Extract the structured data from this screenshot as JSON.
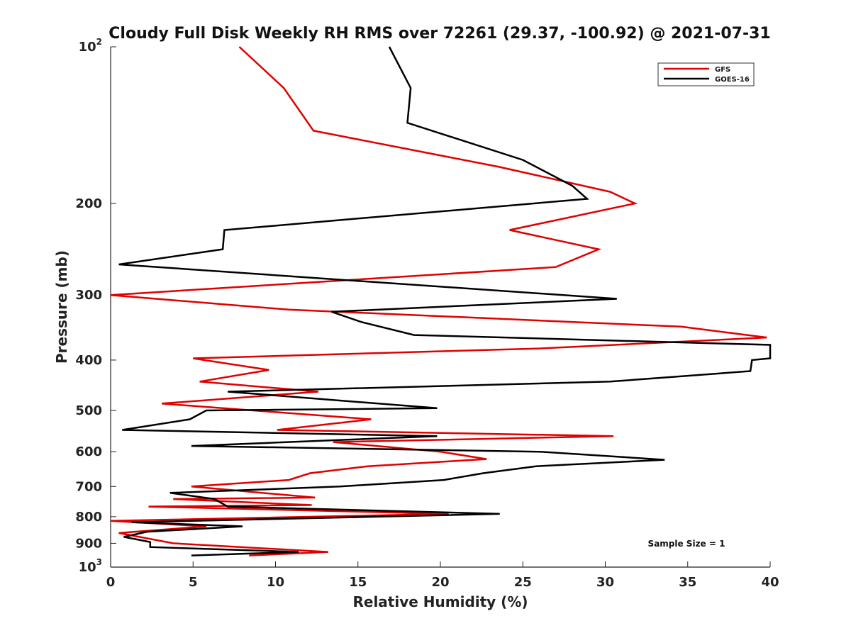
{
  "chart_data": {
    "type": "line",
    "title": "Cloudy Full Disk Weekly RH RMS over 72261 (29.37, -100.92) @ 2021-07-31",
    "xlabel": "Relative Humidity (%)",
    "ylabel": "Pressure (mb)",
    "xlim": [
      0,
      40
    ],
    "ylim": [
      100,
      1000
    ],
    "y_scale": "log",
    "y_reversed": true,
    "grid": false,
    "legend_position": "top-right",
    "annotation": "Sample Size = 1",
    "x_ticks": [
      "0",
      "5",
      "10",
      "15",
      "20",
      "25",
      "30",
      "35",
      "40"
    ],
    "y_ticks": [
      {
        "value": 100,
        "base": "10",
        "sup": "2"
      },
      {
        "value": 200,
        "label": "200"
      },
      {
        "value": 300,
        "label": "300"
      },
      {
        "value": 400,
        "label": "400"
      },
      {
        "value": 500,
        "label": "500"
      },
      {
        "value": 600,
        "label": "600"
      },
      {
        "value": 700,
        "label": "700"
      },
      {
        "value": 800,
        "label": "800"
      },
      {
        "value": 900,
        "label": "900"
      },
      {
        "value": 1000,
        "base": "10",
        "sup": "3"
      }
    ],
    "series": [
      {
        "name": "GFS",
        "color": "#e00000",
        "points": [
          [
            7.8,
            100
          ],
          [
            10.5,
            120
          ],
          [
            12.3,
            145
          ],
          [
            23.5,
            170
          ],
          [
            30.3,
            190
          ],
          [
            31.8,
            200
          ],
          [
            24.2,
            225
          ],
          [
            29.6,
            245
          ],
          [
            27.0,
            265
          ],
          [
            0.0,
            300
          ],
          [
            10.8,
            320
          ],
          [
            34.6,
            345
          ],
          [
            39.8,
            362
          ],
          [
            26.0,
            380
          ],
          [
            5.0,
            397
          ],
          [
            9.6,
            418
          ],
          [
            5.4,
            440
          ],
          [
            12.6,
            460
          ],
          [
            3.1,
            485
          ],
          [
            15.8,
            520
          ],
          [
            10.1,
            545
          ],
          [
            30.5,
            560
          ],
          [
            13.5,
            575
          ],
          [
            20.0,
            600
          ],
          [
            22.8,
            620
          ],
          [
            15.6,
            640
          ],
          [
            12.1,
            660
          ],
          [
            10.8,
            680
          ],
          [
            4.9,
            700
          ],
          [
            12.4,
            735
          ],
          [
            3.8,
            740
          ],
          [
            12.2,
            760
          ],
          [
            2.3,
            765
          ],
          [
            20.5,
            790
          ],
          [
            0.0,
            815
          ],
          [
            5.8,
            835
          ],
          [
            0.5,
            860
          ],
          [
            3.8,
            900
          ],
          [
            13.2,
            935
          ],
          [
            8.4,
            950
          ]
        ]
      },
      {
        "name": "GOES-16",
        "color": "#000000",
        "points": [
          [
            16.9,
            100
          ],
          [
            18.2,
            120
          ],
          [
            18.0,
            140
          ],
          [
            25.0,
            165
          ],
          [
            28.0,
            185
          ],
          [
            28.9,
            196
          ],
          [
            6.9,
            225
          ],
          [
            6.8,
            245
          ],
          [
            0.5,
            262
          ],
          [
            30.7,
            305
          ],
          [
            13.4,
            323
          ],
          [
            15.2,
            338
          ],
          [
            18.4,
            358
          ],
          [
            40.0,
            374
          ],
          [
            40.0,
            397
          ],
          [
            38.9,
            400
          ],
          [
            38.8,
            420
          ],
          [
            30.3,
            440
          ],
          [
            7.1,
            460
          ],
          [
            19.8,
            495
          ],
          [
            5.8,
            500
          ],
          [
            4.8,
            520
          ],
          [
            0.7,
            545
          ],
          [
            19.8,
            560
          ],
          [
            4.9,
            585
          ],
          [
            26.0,
            600
          ],
          [
            33.6,
            622
          ],
          [
            25.8,
            640
          ],
          [
            22.6,
            660
          ],
          [
            20.2,
            680
          ],
          [
            13.9,
            700
          ],
          [
            3.6,
            720
          ],
          [
            6.3,
            740
          ],
          [
            7.1,
            765
          ],
          [
            23.6,
            790
          ],
          [
            1.3,
            820
          ],
          [
            8.0,
            835
          ],
          [
            2.2,
            855
          ],
          [
            0.8,
            875
          ],
          [
            2.4,
            895
          ],
          [
            2.4,
            915
          ],
          [
            11.4,
            935
          ],
          [
            4.9,
            950
          ]
        ]
      }
    ]
  }
}
